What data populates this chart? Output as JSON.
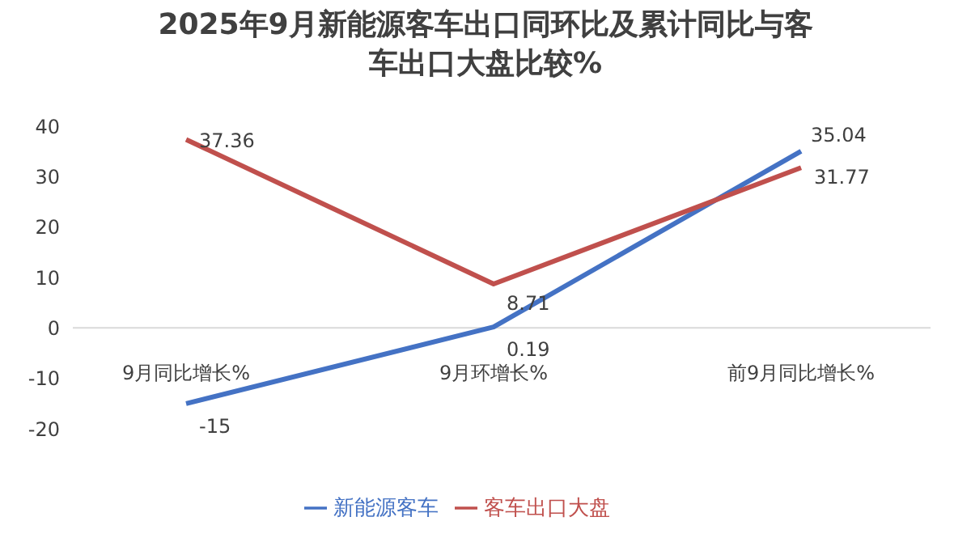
{
  "chart_data": {
    "type": "line",
    "title": "2025年9月新能源客车出口同环比及累计同比与客车出口大盘比较%",
    "categories": [
      "9月同比增长%",
      "9月环增长%",
      "前9月同比增长%"
    ],
    "series": [
      {
        "name": "新能源客车",
        "color": "#4472c4",
        "values": [
          -15,
          0.19,
          35.04
        ]
      },
      {
        "name": "客车出口大盘",
        "color": "#c0504d",
        "values": [
          37.36,
          8.71,
          31.77
        ]
      }
    ],
    "ylim": [
      -20,
      40
    ],
    "yticks": [
      -20,
      -10,
      0,
      10,
      20,
      30,
      40
    ],
    "grid": false,
    "legend": "bottom",
    "data_labels": true,
    "marker": "none"
  }
}
